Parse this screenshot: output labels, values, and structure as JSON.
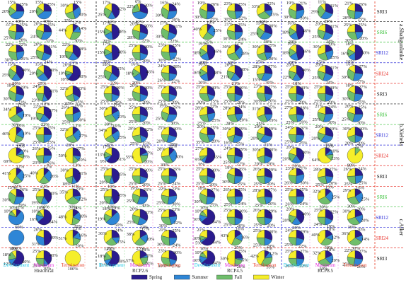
{
  "chart_data": {
    "type": "pie",
    "title": "",
    "season_colors": {
      "Spring": "#2b1c8e",
      "Summer": "#2e86d6",
      "Fall": "#6fbe6b",
      "Winter": "#f5ee2a"
    },
    "legend": {
      "placement": "bottom",
      "entries": [
        "Spring",
        "Summer",
        "Fall",
        "Winter"
      ]
    },
    "column_groups": [
      {
        "name": "Historical",
        "color": "#222222",
        "columns": [
          {
            "label": "Development",
            "color": "#21c8e8"
          },
          {
            "label": "Maximum",
            "color": "#e02cd8"
          },
          {
            "label": "Termination",
            "color": "#e8402a"
          }
        ]
      },
      {
        "name": "RCP2.6",
        "color": "#d63ad6",
        "columns": [
          {
            "label": "Development",
            "color": "#21c8e8"
          },
          {
            "label": "Maximum",
            "color": "#e02cd8"
          },
          {
            "label": "Termination",
            "color": "#e8402a"
          }
        ]
      },
      {
        "name": "RCP4.5",
        "color": "#2a2ae0",
        "columns": [
          {
            "label": "Development",
            "color": "#21c8e8"
          },
          {
            "label": "Maximum",
            "color": "#e02cd8"
          },
          {
            "label": "Termination",
            "color": "#e8402a"
          }
        ]
      },
      {
        "name": "RCP8.5",
        "color": "#e8402a",
        "columns": [
          {
            "label": "Development",
            "color": "#21c8e8"
          },
          {
            "label": "Maximum",
            "color": "#e02cd8"
          },
          {
            "label": "Termination",
            "color": "#e8402a"
          }
        ]
      }
    ],
    "index_rows": [
      {
        "label": "SRI3",
        "color": "#111111"
      },
      {
        "label": "SRI6",
        "color": "#35c035"
      },
      {
        "label": "SRI12",
        "color": "#2b2bd8"
      },
      {
        "label": "SRI24",
        "color": "#e8302a"
      }
    ],
    "regions": [
      "a.Shaligunlanke",
      "b.Xiehela",
      "c.Alker"
    ],
    "pies": [
      [
        [
          25,
          40,
          20,
          15
        ],
        [
          25,
          40,
          20,
          15
        ],
        [
          15,
          30,
          25,
          30
        ],
        [
          42,
          16,
          25,
          17
        ],
        [
          30,
          42,
          22,
          6
        ],
        [
          24,
          30,
          30,
          16
        ],
        [
          26,
          25,
          30,
          19
        ],
        [
          25,
          22,
          30,
          23
        ],
        [
          22,
          15,
          30,
          33
        ],
        [
          21,
          30,
          30,
          19
        ],
        [
          31,
          29,
          29,
          11
        ],
        [
          26,
          25,
          28,
          21
        ]
      ],
      [
        [
          25,
          28,
          25,
          22
        ],
        [
          25,
          31,
          24,
          20
        ],
        [
          12,
          14,
          30,
          44
        ],
        [
          48,
          20,
          15,
          17
        ],
        [
          30,
          22,
          28,
          20
        ],
        [
          31,
          22,
          30,
          17
        ],
        [
          10,
          25,
          25,
          40
        ],
        [
          25,
          24,
          30,
          21
        ],
        [
          30,
          30,
          25,
          15
        ],
        [
          46,
          20,
          18,
          16
        ],
        [
          31,
          24,
          25,
          20
        ],
        [
          25,
          20,
          30,
          25
        ]
      ],
      [
        [
          22,
          26,
          30,
          22
        ],
        [
          31,
          24,
          25,
          20
        ],
        [
          38,
          21,
          19,
          22
        ],
        [
          48,
          20,
          15,
          17
        ],
        [
          30,
          20,
          25,
          25
        ],
        [
          25,
          22,
          30,
          23
        ],
        [
          46,
          20,
          18,
          16
        ],
        [
          12,
          28,
          30,
          30
        ],
        [
          25,
          20,
          25,
          30
        ],
        [
          46,
          20,
          18,
          16
        ],
        [
          20,
          25,
          25,
          30
        ],
        [
          50,
          16,
          16,
          18
        ]
      ],
      [
        [
          40,
          20,
          25,
          15
        ],
        [
          40,
          25,
          20,
          15
        ],
        [
          60,
          10,
          10,
          20
        ],
        [
          35,
          22,
          25,
          18
        ],
        [
          46,
          20,
          18,
          16
        ],
        [
          28,
          22,
          26,
          24
        ],
        [
          48,
          20,
          16,
          16
        ],
        [
          38,
          21,
          21,
          20
        ],
        [
          27,
          30,
          15,
          28
        ],
        [
          40,
          18,
          22,
          20
        ],
        [
          31,
          24,
          25,
          20
        ],
        [
          27,
          27,
          30,
          16
        ]
      ],
      [
        [
          29,
          23,
          30,
          18
        ],
        [
          41,
          12,
          23,
          24
        ],
        [
          33,
          13,
          22,
          32
        ],
        [
          30,
          20,
          25,
          25
        ],
        [
          30,
          20,
          30,
          20
        ],
        [
          30,
          20,
          25,
          25
        ],
        [
          30,
          15,
          30,
          25
        ],
        [
          30,
          20,
          25,
          25
        ],
        [
          27,
          20,
          30,
          23
        ],
        [
          30,
          20,
          25,
          25
        ],
        [
          30,
          20,
          25,
          25
        ],
        [
          27,
          25,
          30,
          18
        ]
      ],
      [
        [
          17,
          19,
          30,
          34
        ],
        [
          37,
          22,
          19,
          22
        ],
        [
          19,
          30,
          25,
          26
        ],
        [
          17,
          23,
          30,
          30
        ],
        [
          30,
          20,
          25,
          25
        ],
        [
          26,
          30,
          25,
          19
        ],
        [
          22,
          25,
          25,
          28
        ],
        [
          24,
          20,
          28,
          28
        ],
        [
          25,
          19,
          25,
          31
        ],
        [
          28,
          20,
          25,
          27
        ],
        [
          24,
          30,
          25,
          21
        ],
        [
          25,
          30,
          25,
          20
        ]
      ],
      [
        [
          13,
          19,
          22,
          46
        ],
        [
          25,
          25,
          25,
          25
        ],
        [
          13,
          27,
          28,
          32
        ],
        [
          16,
          25,
          25,
          34
        ],
        [
          32,
          15,
          25,
          28
        ],
        [
          30,
          25,
          20,
          25
        ],
        [
          25,
          20,
          35,
          20
        ],
        [
          29,
          25,
          16,
          30
        ],
        [
          29,
          31,
          20,
          20
        ],
        [
          26,
          25,
          25,
          24
        ],
        [
          29,
          31,
          20,
          20
        ],
        [
          30,
          20,
          20,
          30
        ]
      ],
      [
        [
          13,
          9,
          9,
          69
        ],
        [
          25,
          26,
          23,
          26
        ],
        [
          27,
          10,
          13,
          50
        ],
        [
          61,
          9,
          13,
          17
        ],
        [
          18,
          7,
          20,
          55
        ],
        [
          12,
          30,
          30,
          28
        ],
        [
          55,
          9,
          9,
          27
        ],
        [
          29,
          22,
          25,
          24
        ],
        [
          30,
          20,
          20,
          30
        ],
        [
          40,
          20,
          20,
          20
        ],
        [
          13,
          10,
          13,
          64
        ],
        [
          0,
          0,
          12,
          88
        ]
      ],
      [
        [
          12,
          25,
          22,
          41
        ],
        [
          12,
          26,
          22,
          40
        ],
        [
          41,
          11,
          18,
          30
        ],
        [
          45,
          10,
          20,
          25
        ],
        [
          30,
          20,
          25,
          25
        ],
        [
          26,
          24,
          25,
          25
        ],
        [
          30,
          20,
          25,
          25
        ],
        [
          26,
          25,
          30,
          19
        ],
        [
          29,
          20,
          25,
          26
        ],
        [
          21,
          30,
          26,
          23
        ],
        [
          27,
          20,
          25,
          28
        ],
        [
          24,
          25,
          25,
          26
        ]
      ],
      [
        [
          26,
          29,
          30,
          15
        ],
        [
          40,
          16,
          19,
          25
        ],
        [
          23,
          12,
          30,
          35
        ],
        [
          45,
          10,
          20,
          25
        ],
        [
          26,
          30,
          25,
          19
        ],
        [
          23,
          30,
          25,
          22
        ],
        [
          27,
          25,
          30,
          18
        ],
        [
          25,
          24,
          25,
          26
        ],
        [
          27,
          20,
          25,
          28
        ],
        [
          25,
          24,
          26,
          25
        ],
        [
          13,
          25,
          30,
          32
        ],
        [
          16,
          25,
          30,
          29
        ]
      ],
      [
        [
          11,
          69,
          10,
          10
        ],
        [
          64,
          16,
          10,
          10
        ],
        [
          14,
          18,
          20,
          48
        ],
        [
          13,
          50,
          19,
          18
        ],
        [
          33,
          22,
          25,
          20
        ],
        [
          23,
          22,
          30,
          25
        ],
        [
          64,
          16,
          10,
          10
        ],
        [
          30,
          20,
          25,
          25
        ],
        [
          29,
          20,
          25,
          26
        ],
        [
          40,
          20,
          20,
          20
        ],
        [
          32,
          19,
          24,
          25
        ],
        [
          20,
          20,
          30,
          30
        ]
      ],
      [
        [
          0,
          100,
          0,
          0
        ],
        [
          49,
          31,
          0,
          20
        ],
        [
          13,
          16,
          20,
          51
        ],
        [
          24,
          15,
          25,
          36
        ],
        [
          17,
          20,
          25,
          38
        ],
        [
          25,
          24,
          30,
          21
        ],
        [
          64,
          5,
          10,
          21
        ],
        [
          16,
          16,
          25,
          43
        ],
        [
          30,
          20,
          25,
          25
        ],
        [
          29,
          22,
          25,
          24
        ],
        [
          18,
          12,
          30,
          40
        ],
        [
          20,
          14,
          30,
          36
        ]
      ],
      [
        [
          60,
          12,
          18,
          10
        ],
        [
          40,
          10,
          25,
          25
        ],
        [
          0,
          0,
          0,
          100
        ],
        [
          59,
          11,
          18,
          12
        ],
        [
          18,
          5,
          20,
          57
        ],
        [
          30,
          17,
          30,
          23
        ],
        [
          64,
          16,
          10,
          10
        ],
        [
          25,
          5,
          20,
          50
        ],
        [
          11,
          12,
          35,
          42
        ],
        [
          27,
          22,
          26,
          25
        ],
        [
          18,
          20,
          30,
          32
        ],
        [
          27,
          26,
          25,
          22
        ]
      ]
    ]
  }
}
